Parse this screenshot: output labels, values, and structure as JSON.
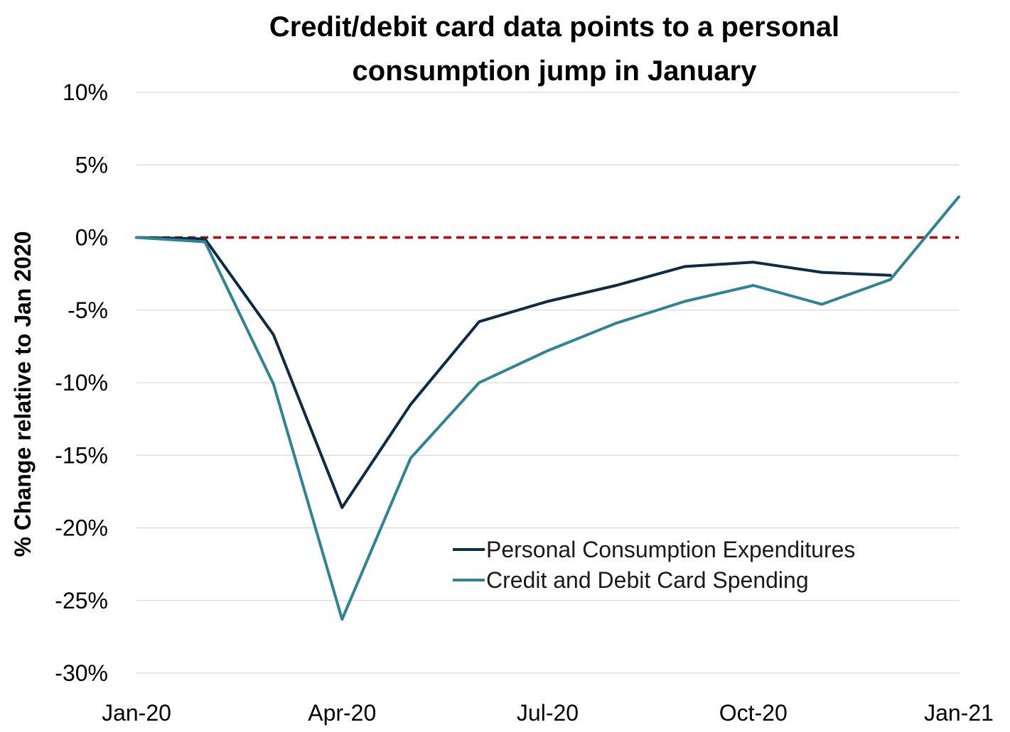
{
  "chart_data": {
    "type": "line",
    "title_lines": [
      "Credit/debit card data points to a personal",
      "consumption jump in January"
    ],
    "ylabel": "% Change relative to Jan 2020",
    "xlabel": "",
    "ylim": [
      -30,
      10
    ],
    "y_ticks": [
      10,
      5,
      0,
      -5,
      -10,
      -15,
      -20,
      -25,
      -30
    ],
    "y_tick_labels": [
      "10%",
      "5%",
      "0%",
      "-5%",
      "-10%",
      "-15%",
      "-20%",
      "-25%",
      "-30%"
    ],
    "x": [
      "Jan-20",
      "Feb-20",
      "Mar-20",
      "Apr-20",
      "May-20",
      "Jun-20",
      "Jul-20",
      "Aug-20",
      "Sep-20",
      "Oct-20",
      "Nov-20",
      "Dec-20",
      "Jan-21"
    ],
    "x_tick_labels": [
      "Jan-20",
      "Apr-20",
      "Jul-20",
      "Oct-20",
      "Jan-21"
    ],
    "x_tick_indices": [
      0,
      3,
      6,
      9,
      12
    ],
    "grid": true,
    "reference_line": {
      "value": 0,
      "color": "#c00000",
      "style": "dashed"
    },
    "legend_position": "bottom-right",
    "series": [
      {
        "name": "Personal Consumption Expenditures",
        "color": "#0d2b45",
        "values": [
          0,
          -0.1,
          -6.7,
          -18.6,
          -11.5,
          -5.8,
          -4.4,
          -3.3,
          -2.0,
          -1.7,
          -2.4,
          -2.6,
          null
        ]
      },
      {
        "name": "Credit and Debit Card Spending",
        "color": "#2e8494",
        "values": [
          0,
          -0.3,
          -10.1,
          -26.3,
          -15.2,
          -10.0,
          -7.8,
          -5.9,
          -4.4,
          -3.3,
          -4.6,
          -2.9,
          2.8
        ]
      }
    ]
  }
}
